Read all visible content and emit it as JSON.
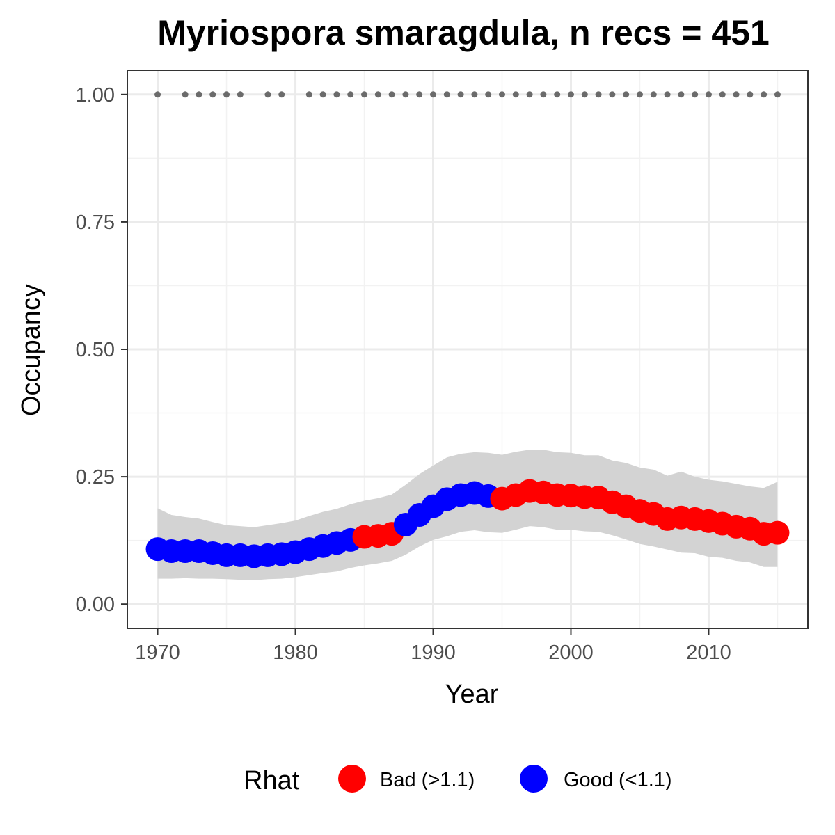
{
  "chart_data": {
    "type": "line",
    "title": "Myriospora smaragdula, n recs = 451",
    "xlabel": "Year",
    "ylabel": "Occupancy",
    "xlim": [
      1967.8,
      2017.2
    ],
    "ylim": [
      -0.0475,
      1.0475
    ],
    "x_ticks": [
      1970,
      1980,
      1990,
      2000,
      2010
    ],
    "x_tick_labels": [
      "1970",
      "1980",
      "1990",
      "2000",
      "2010"
    ],
    "y_ticks": [
      0,
      0.25,
      0.5,
      0.75,
      1
    ],
    "y_tick_labels": [
      "0.00",
      "0.25",
      "0.50",
      "0.75",
      "1.00"
    ],
    "grid": true,
    "legend": {
      "title": "Rhat",
      "position": "bottom",
      "items": [
        {
          "key": "bad",
          "label": "Bad (>1.1)",
          "color": "#ff0000"
        },
        {
          "key": "good",
          "label": "Good (<1.1)",
          "color": "#0000ff"
        }
      ]
    },
    "colors": {
      "bad": "#ff0000",
      "good": "#0000ff",
      "ribbon": "#d3d3d3",
      "records": "#6b6b6b"
    },
    "series": {
      "x": [
        1970,
        1971,
        1972,
        1973,
        1974,
        1975,
        1976,
        1977,
        1978,
        1979,
        1980,
        1981,
        1982,
        1983,
        1984,
        1985,
        1986,
        1987,
        1988,
        1989,
        1990,
        1991,
        1992,
        1993,
        1994,
        1995,
        1996,
        1997,
        1998,
        1999,
        2000,
        2001,
        2002,
        2003,
        2004,
        2005,
        2006,
        2007,
        2008,
        2009,
        2010,
        2011,
        2012,
        2013,
        2014,
        2015
      ],
      "occupancy": [
        0.108,
        0.104,
        0.104,
        0.104,
        0.1,
        0.096,
        0.096,
        0.094,
        0.096,
        0.098,
        0.102,
        0.108,
        0.114,
        0.12,
        0.126,
        0.132,
        0.134,
        0.138,
        0.156,
        0.175,
        0.192,
        0.206,
        0.214,
        0.218,
        0.212,
        0.207,
        0.214,
        0.222,
        0.219,
        0.214,
        0.213,
        0.21,
        0.209,
        0.2,
        0.192,
        0.183,
        0.177,
        0.167,
        0.17,
        0.167,
        0.163,
        0.158,
        0.152,
        0.148,
        0.138,
        0.14
      ],
      "lower": [
        0.05,
        0.05,
        0.051,
        0.05,
        0.05,
        0.049,
        0.048,
        0.047,
        0.049,
        0.05,
        0.053,
        0.057,
        0.061,
        0.064,
        0.071,
        0.076,
        0.08,
        0.085,
        0.097,
        0.113,
        0.126,
        0.133,
        0.142,
        0.145,
        0.141,
        0.14,
        0.146,
        0.153,
        0.151,
        0.146,
        0.146,
        0.143,
        0.142,
        0.135,
        0.127,
        0.118,
        0.113,
        0.107,
        0.101,
        0.1,
        0.093,
        0.091,
        0.085,
        0.082,
        0.073,
        0.073
      ],
      "upper": [
        0.188,
        0.175,
        0.171,
        0.168,
        0.161,
        0.155,
        0.153,
        0.151,
        0.155,
        0.159,
        0.164,
        0.173,
        0.181,
        0.187,
        0.196,
        0.203,
        0.208,
        0.215,
        0.234,
        0.255,
        0.272,
        0.288,
        0.295,
        0.298,
        0.297,
        0.293,
        0.299,
        0.303,
        0.303,
        0.298,
        0.297,
        0.292,
        0.292,
        0.282,
        0.277,
        0.268,
        0.264,
        0.252,
        0.26,
        0.25,
        0.244,
        0.241,
        0.236,
        0.231,
        0.228,
        0.24
      ],
      "rhat": [
        "good",
        "good",
        "good",
        "good",
        "good",
        "good",
        "good",
        "good",
        "good",
        "good",
        "good",
        "good",
        "good",
        "good",
        "good",
        "bad",
        "bad",
        "bad",
        "good",
        "good",
        "good",
        "good",
        "good",
        "good",
        "good",
        "bad",
        "bad",
        "bad",
        "bad",
        "bad",
        "bad",
        "bad",
        "bad",
        "bad",
        "bad",
        "bad",
        "bad",
        "bad",
        "bad",
        "bad",
        "bad",
        "bad",
        "bad",
        "bad",
        "bad",
        "bad"
      ]
    },
    "records": {
      "x": [
        1970,
        1972,
        1973,
        1974,
        1975,
        1976,
        1978,
        1979,
        1981,
        1982,
        1983,
        1984,
        1985,
        1986,
        1987,
        1988,
        1989,
        1990,
        1991,
        1992,
        1993,
        1994,
        1995,
        1996,
        1997,
        1998,
        1999,
        2000,
        2001,
        2002,
        2003,
        2004,
        2005,
        2006,
        2007,
        2008,
        2009,
        2010,
        2011,
        2012,
        2013,
        2014,
        2015
      ],
      "y": 1.0
    }
  }
}
